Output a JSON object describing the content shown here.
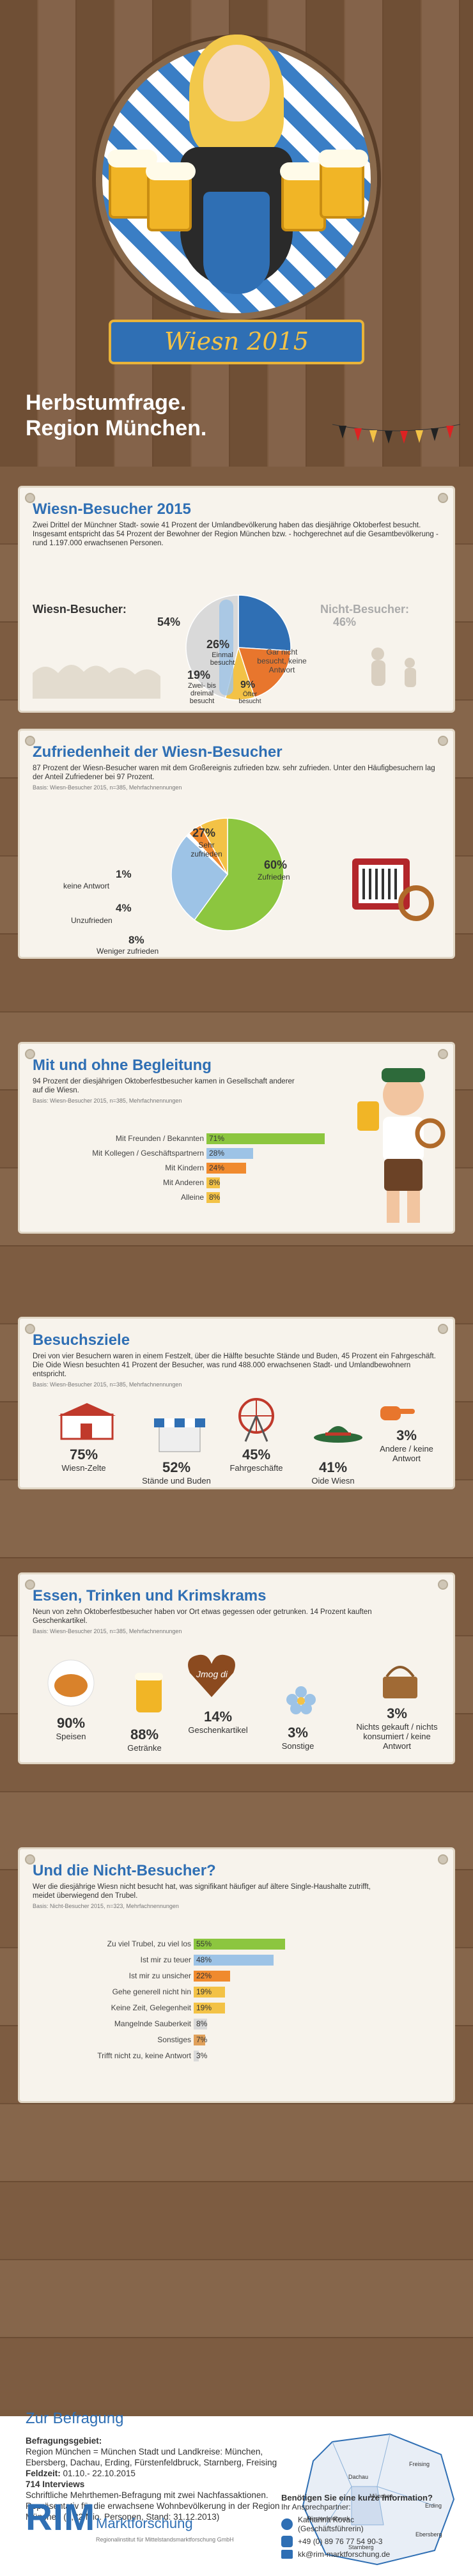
{
  "header": {
    "ribbon": "Wiesn 2015",
    "headline_1": "Herbstumfrage.",
    "headline_2": "Region München."
  },
  "colors": {
    "blue": "#2f6fb4",
    "green": "#8cc63f",
    "orange": "#e8762d",
    "yellow": "#f3c246",
    "grey": "#c9c9c9"
  },
  "sections": {
    "visitors": {
      "title": "Wiesn-Besucher 2015",
      "intro": "Zwei Drittel der Münchner Stadt- sowie 41 Prozent der Umlandbevölkerung haben das diesjährige Oktoberfest besucht. Insgesamt entspricht das 54 Prozent der Bewohner der Region München bzw. - hochgerechnet auf die Gesamtbevölkerung - rund 1.197.000 erwachsenen Personen.",
      "left_label": "Wiesn-Besucher:",
      "left_pct": "54%",
      "right_label": "Nicht-Besucher:",
      "right_pct": "46%"
    },
    "satisfaction": {
      "title": "Zufriedenheit der Wiesn-Besucher",
      "intro": "87 Prozent der Wiesn-Besucher waren mit dem Großereignis zufrieden bzw. sehr zufrieden. Unter den Häufigbesuchern lag der Anteil Zufriedener bei 97 Prozent.",
      "basis": "Basis: Wiesn-Besucher 2015, n=385, Mehrfachnennungen"
    },
    "company": {
      "title": "Mit und ohne Begleitung",
      "intro": "94 Prozent der diesjährigen Oktoberfestbesucher kamen in Gesellschaft anderer auf die Wiesn.",
      "basis": "Basis: Wiesn-Besucher 2015, n=385, Mehrfachnennungen"
    },
    "goals": {
      "title": "Besuchsziele",
      "intro": "Drei von vier Besuchern waren in einem Festzelt, über die Hälfte besuchte Stände und Buden, 45 Prozent ein Fahrgeschäft. Die Oide Wiesn besuchten 41 Prozent der Besucher, was rund 488.000 erwachsenen Stadt- und Umlandbewohnern entspricht.",
      "basis": "Basis: Wiesn-Besucher 2015, n=385, Mehrfachnennungen"
    },
    "food": {
      "title": "Essen, Trinken und Krimskrams",
      "intro": "Neun von zehn Oktoberfestbesucher haben vor Ort etwas gegessen oder getrunken. 14 Prozent kauften Geschenkartikel.",
      "basis": "Basis: Wiesn-Besucher 2015, n=385, Mehrfachnennungen",
      "heart_text": "Jmog di"
    },
    "nonvisitors": {
      "title": "Und die Nicht-Besucher?",
      "intro": "Wer die diesjährige Wiesn nicht besucht hat, was signifikant häufiger auf ältere Single-Haushalte zutrifft, meidet überwiegend den Trubel.",
      "basis": "Basis: Nicht-Besucher 2015, n=323, Mehrfachnennungen"
    }
  },
  "chart_data": [
    {
      "type": "pie",
      "title": "Wiesn-Besucher 2015",
      "slices": [
        {
          "label": "Einmal besucht",
          "value": 26,
          "color": "#2f6fb4"
        },
        {
          "label": "Zwei- bis dreimal besucht",
          "value": 19,
          "color": "#e8762d"
        },
        {
          "label": "Öfter besucht",
          "value": 9,
          "color": "#f3c246"
        },
        {
          "label": "Gar nicht besucht, keine Antwort",
          "value": 46,
          "color": "#d9d9d9"
        }
      ]
    },
    {
      "type": "pie",
      "title": "Zufriedenheit der Wiesn-Besucher",
      "slices": [
        {
          "label": "Zufrieden",
          "value": 60,
          "color": "#8cc63f"
        },
        {
          "label": "Sehr zufrieden",
          "value": 27,
          "color": "#9dc3e6"
        },
        {
          "label": "keine Antwort",
          "value": 1,
          "color": "#ffffff"
        },
        {
          "label": "Unzufrieden",
          "value": 4,
          "color": "#f08a2e"
        },
        {
          "label": "Weniger zufrieden",
          "value": 8,
          "color": "#f3c246"
        }
      ]
    },
    {
      "type": "bar",
      "title": "Mit und ohne Begleitung",
      "categories": [
        "Mit Freunden / Bekannten",
        "Mit Kollegen / Geschäftspartnern",
        "Mit Kindern",
        "Mit Anderen",
        "Alleine"
      ],
      "values": [
        71,
        28,
        24,
        8,
        8
      ],
      "colors": [
        "#8cc63f",
        "#9dc3e6",
        "#f08a2e",
        "#f3c246",
        "#f3c246"
      ],
      "xlim": [
        0,
        100
      ]
    },
    {
      "type": "bar",
      "title": "Besuchsziele",
      "categories": [
        "Wiesn-Zelte",
        "Stände und Buden",
        "Fahrgeschäfte",
        "Oide Wiesn",
        "Andere / keine Antwort"
      ],
      "values": [
        75,
        52,
        45,
        41,
        3
      ]
    },
    {
      "type": "bar",
      "title": "Essen, Trinken und Krimskrams",
      "categories": [
        "Speisen",
        "Getränke",
        "Geschenkartikel",
        "Sonstige",
        "Nichts gekauft / nichts konsumiert / keine Antwort"
      ],
      "values": [
        90,
        88,
        14,
        3,
        3
      ]
    },
    {
      "type": "bar",
      "title": "Und die Nicht-Besucher?",
      "categories": [
        "Zu viel Trubel, zu viel los",
        "Ist mir zu teuer",
        "Ist mir zu unsicher",
        "Gehe generell nicht hin",
        "Keine Zeit, Gelegenheit",
        "Mangelnde Sauberkeit",
        "Sonstiges",
        "Trifft nicht zu, keine Antwort"
      ],
      "values": [
        55,
        48,
        22,
        19,
        19,
        8,
        7,
        3
      ],
      "colors": [
        "#8cc63f",
        "#9dc3e6",
        "#f08a2e",
        "#f3c246",
        "#f3c246",
        "#d9d9d9",
        "#e0a05a",
        "#d9d9d9"
      ],
      "xlim": [
        0,
        100
      ]
    }
  ],
  "labels": {
    "p1_einmal_pct": "26%",
    "p1_einmal": "Einmal besucht",
    "p1_zwei_pct": "19%",
    "p1_zwei": "Zwei- bis dreimal besucht",
    "p1_oefter_pct": "9%",
    "p1_oefter": "Öfter besucht",
    "p1_gar": "Gar nicht besucht, keine Antwort",
    "p2_zuf_pct": "60%",
    "p2_zuf": "Zufrieden",
    "p2_sehr_pct": "27%",
    "p2_sehr": "Sehr zufrieden",
    "p2_keine_pct": "1%",
    "p2_keine": "keine Antwort",
    "p2_unz_pct": "4%",
    "p2_unz": "Unzufrieden",
    "p2_wen_pct": "8%",
    "p2_wen": "Weniger zufrieden"
  },
  "goals_items": [
    {
      "pct": "75%",
      "label": "Wiesn-Zelte"
    },
    {
      "pct": "52%",
      "label": "Stände und Buden"
    },
    {
      "pct": "45%",
      "label": "Fahrgeschäfte"
    },
    {
      "pct": "41%",
      "label": "Oide Wiesn"
    },
    {
      "pct": "3%",
      "label": "Andere / keine Antwort"
    }
  ],
  "food_items": [
    {
      "pct": "90%",
      "label": "Speisen"
    },
    {
      "pct": "88%",
      "label": "Getränke"
    },
    {
      "pct": "14%",
      "label": "Geschenkartikel"
    },
    {
      "pct": "3%",
      "label": "Sonstige"
    },
    {
      "pct": "3%",
      "label": "Nichts gekauft / nichts konsumiert / keine Antwort"
    }
  ],
  "befragung": {
    "title": "Zur Befragung",
    "gebiet_label": "Befragungsgebiet:",
    "gebiet": "Region München = München Stadt und Landkreise: München, Ebersberg, Dachau, Erding, Fürstenfeldbruck, Starnberg, Freising",
    "feldzeit_label": "Feldzeit:",
    "feldzeit": "01.10.- 22.10.2015",
    "interviews": "714 Interviews",
    "method": "Schriftliche Mehrthemen-Befragung mit zwei Nachfassaktionen. Repräsentativ für die erwachsene Wohnbevölkerung in der Region München (2,22 Mio. Personen, Stand: 31.12.2013)",
    "map_labels": [
      "Freising",
      "Dachau",
      "Erding",
      "München",
      "Fürstenfeldbruck",
      "Ebersberg",
      "Starnberg"
    ]
  },
  "footer": {
    "logo": "RIM",
    "logo_sub": "Marktforschung",
    "tagline": "Regionalinstitut für Mittelstandsmarktforschung GmbH",
    "contact_title": "Benötigen Sie eine kurze Information?",
    "contact_sub": "Ihr Ansprechpartner:",
    "name": "Katharina Kovac",
    "role": "(Geschäftsführerin)",
    "phone": "+49 (0) 89 76 77 54 90-3",
    "email": "kk@rim-marktforschung.de"
  }
}
